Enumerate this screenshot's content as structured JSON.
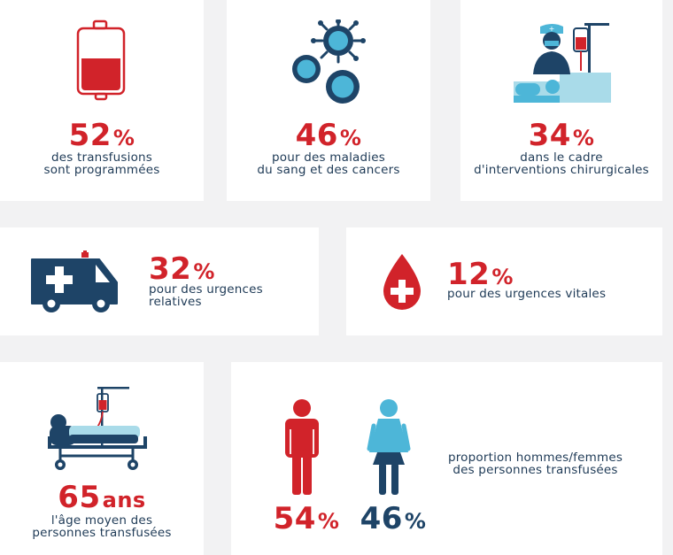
{
  "colors": {
    "red": "#d1232a",
    "navy": "#1e4467",
    "light_blue": "#4db6d8",
    "pale_blue": "#a9dbe9",
    "background": "#f2f2f3"
  },
  "stats": {
    "programmed": {
      "value": "52",
      "unit": "%",
      "line1": "des transfusions",
      "line2": "sont programmées",
      "icon": "blood-bag-icon"
    },
    "blood_cancer": {
      "value": "46",
      "unit": "%",
      "line1": "pour des maladies",
      "line2": "du sang et des cancers",
      "icon": "virus-cells-icon"
    },
    "surgery": {
      "value": "34",
      "unit": "%",
      "line1": "dans le cadre",
      "line2": "d'interventions chirurgicales",
      "icon": "surgeon-patient-icon"
    },
    "relative_emergency": {
      "value": "32",
      "unit": "%",
      "line1": "pour des urgences",
      "line2": "relatives",
      "icon": "ambulance-icon"
    },
    "vital_emergency": {
      "value": "12",
      "unit": "%",
      "line1": "pour des urgences vitales",
      "icon": "blood-drop-cross-icon"
    },
    "age": {
      "value": "65",
      "unit": "ans",
      "line1": "l'âge moyen des",
      "line2": "personnes transfusées",
      "icon": "patient-stretcher-icon"
    },
    "gender": {
      "men_value": "54",
      "men_unit": "%",
      "women_value": "46",
      "women_unit": "%",
      "line1": "proportion hommes/femmes",
      "line2": "des personnes transfusées",
      "icons": [
        "man-icon",
        "woman-icon"
      ]
    }
  }
}
